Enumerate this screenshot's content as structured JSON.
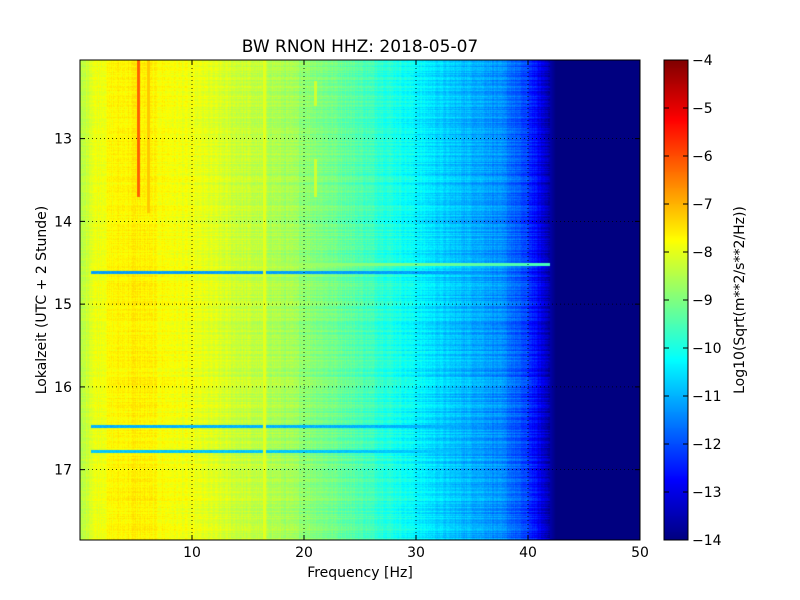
{
  "chart_data": {
    "type": "heatmap",
    "title": "BW RNON HHZ: 2018-05-07",
    "xlabel": "Frequency [Hz]",
    "ylabel": "Lokalzeit (UTC + 2 Stunde)",
    "xlim": [
      0,
      50
    ],
    "ylim": [
      12.05,
      17.85
    ],
    "y_inverted": true,
    "xticks": [
      10,
      20,
      30,
      40,
      50
    ],
    "yticks": [
      13,
      14,
      15,
      16,
      17
    ],
    "grid": true,
    "colormap": "jet",
    "colorbar": {
      "label": "Log10(Sqrt(m**2/s**2/Hz))",
      "range": [
        -14,
        -4
      ],
      "ticks": [
        -4,
        -5,
        -6,
        -7,
        -8,
        -9,
        -10,
        -11,
        -12,
        -13,
        -14
      ]
    },
    "level_profile": {
      "frequency_hz": [
        0,
        1,
        3,
        5,
        8,
        12,
        16,
        20,
        24,
        27,
        30,
        33,
        36,
        38,
        40,
        41,
        42,
        42.5,
        50
      ],
      "log10_psd": [
        -8.6,
        -8.0,
        -7.7,
        -7.6,
        -7.8,
        -8.1,
        -8.4,
        -8.8,
        -9.3,
        -9.8,
        -10.3,
        -10.8,
        -11.1,
        -11.5,
        -12.2,
        -12.9,
        -13.6,
        -14.0,
        -14.0
      ]
    },
    "artifacts": [
      {
        "kind": "line",
        "frequency_hz": 5.2,
        "time_from": 12.05,
        "time_to": 13.7,
        "log10_psd": -6.2
      },
      {
        "kind": "line",
        "frequency_hz": 6.1,
        "time_from": 12.05,
        "time_to": 13.9,
        "log10_psd": -7.2
      },
      {
        "kind": "line",
        "frequency_hz": 16.5,
        "time_from": 12.05,
        "time_to": 17.85,
        "log10_psd": -8.0
      },
      {
        "kind": "line",
        "frequency_hz": 21.0,
        "time_from": 12.3,
        "time_to": 12.6,
        "log10_psd": -8.2
      },
      {
        "kind": "line",
        "frequency_hz": 21.0,
        "time_from": 13.25,
        "time_to": 13.7,
        "log10_psd": -8.2
      },
      {
        "kind": "band",
        "time": 14.52,
        "log10_psd": -7.9
      },
      {
        "kind": "band",
        "time": 14.62,
        "log10_psd": -11.2
      },
      {
        "kind": "band",
        "time": 16.48,
        "log10_psd": -11.0
      },
      {
        "kind": "band",
        "time": 16.78,
        "log10_psd": -10.8
      }
    ]
  }
}
